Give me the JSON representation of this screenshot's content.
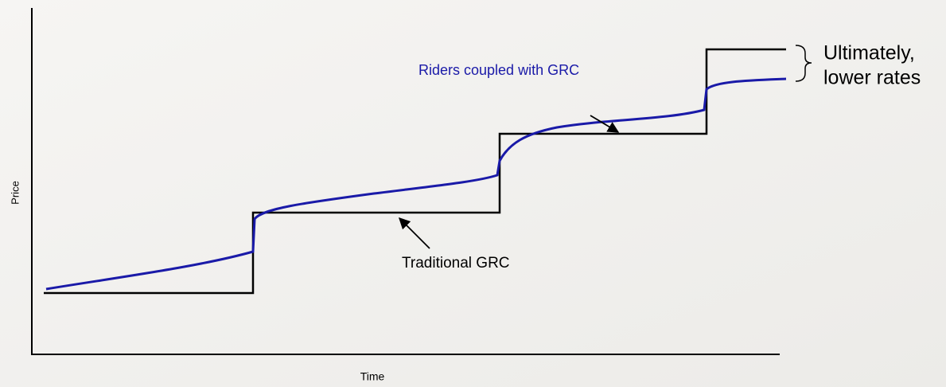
{
  "axes": {
    "y_label": "Price",
    "x_label": "Time"
  },
  "annotations": {
    "riders": "Riders coupled with GRC",
    "traditional": "Traditional GRC",
    "outcome": [
      "Ultimately,",
      "lower rates"
    ]
  }
}
